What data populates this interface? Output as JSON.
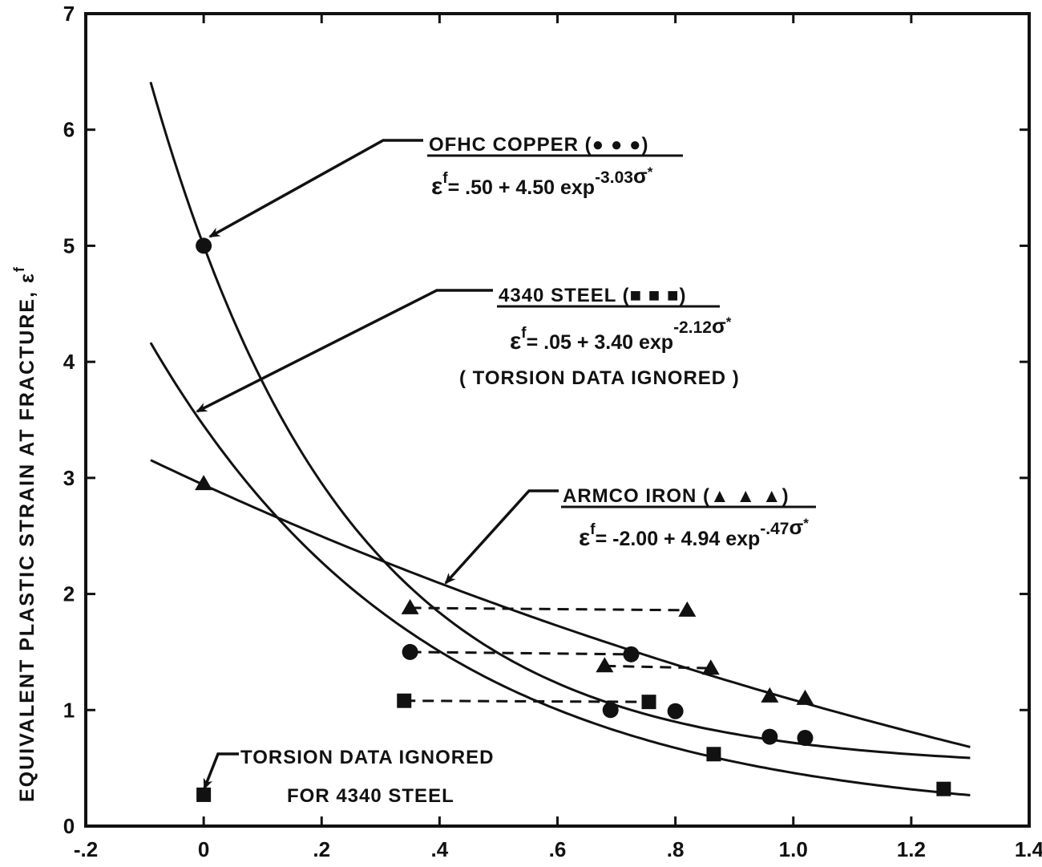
{
  "chart_data": {
    "type": "scatter",
    "title": "",
    "xlabel": "",
    "ylabel": "EQUIVALENT PLASTIC STRAIN AT FRACTURE, εᶠ",
    "xlim": [
      -0.2,
      1.4
    ],
    "ylim": [
      0,
      7
    ],
    "grid": false,
    "x_ticks": [
      -0.2,
      0,
      0.2,
      0.4,
      0.6,
      0.8,
      1.0,
      1.2,
      1.4
    ],
    "x_tick_labels": [
      "-.2",
      "0",
      ".2",
      ".4",
      ".6",
      ".8",
      "1.0",
      "1.2",
      "1.4"
    ],
    "y_ticks": [
      0,
      1,
      2,
      3,
      4,
      5,
      6,
      7
    ],
    "y_tick_labels": [
      "0",
      "1",
      "2",
      "3",
      "4",
      "5",
      "6",
      "7"
    ],
    "series": [
      {
        "name": "OFHC COPPER",
        "marker": "circle",
        "fit": {
          "a": 0.5,
          "b": 4.5,
          "c": -3.03,
          "x_range": [
            -0.09,
            1.3
          ]
        },
        "equation_text": "εᶠ= .50 + 4.50 exp⁻³·⁰³σ*",
        "points": [
          [
            0,
            5.0
          ],
          [
            0.35,
            1.5
          ],
          [
            0.725,
            1.48
          ],
          [
            0.69,
            1.0
          ],
          [
            0.8,
            0.99
          ],
          [
            0.96,
            0.77
          ],
          [
            1.02,
            0.76
          ]
        ],
        "dashed_links": [
          [
            [
              0.35,
              1.5
            ],
            [
              0.725,
              1.48
            ]
          ]
        ]
      },
      {
        "name": "4340 STEEL",
        "marker": "square",
        "fit": {
          "a": 0.05,
          "b": 3.4,
          "c": -2.12,
          "x_range": [
            -0.09,
            1.3
          ]
        },
        "equation_text": "εᶠ= .05 + 3.40 exp⁻²·¹²σ*",
        "note": "(TORSION DATA IGNORED)",
        "points": [
          [
            0,
            0.27
          ],
          [
            0.34,
            1.08
          ],
          [
            0.755,
            1.07
          ],
          [
            0.865,
            0.62
          ],
          [
            1.255,
            0.32
          ]
        ],
        "dashed_links": [
          [
            [
              0.34,
              1.08
            ],
            [
              0.755,
              1.07
            ]
          ]
        ]
      },
      {
        "name": "ARMCO IRON",
        "marker": "triangle",
        "fit": {
          "a": -2.0,
          "b": 4.94,
          "c": -0.47,
          "x_range": [
            -0.09,
            1.3
          ]
        },
        "equation_text": "εᶠ= -2.00 + 4.94 exp⁻·⁴⁷σ*",
        "points": [
          [
            0,
            2.95
          ],
          [
            0.35,
            1.88
          ],
          [
            0.82,
            1.86
          ],
          [
            0.68,
            1.38
          ],
          [
            0.86,
            1.36
          ],
          [
            0.96,
            1.12
          ],
          [
            1.02,
            1.1
          ]
        ],
        "dashed_links": [
          [
            [
              0.35,
              1.88
            ],
            [
              0.82,
              1.86
            ]
          ],
          [
            [
              0.68,
              1.38
            ],
            [
              0.86,
              1.36
            ]
          ]
        ]
      }
    ],
    "annotations": [
      "OFHC COPPER (●●●)",
      "4340 STEEL (■■■)",
      "ARMCO IRON (▲▲▲)",
      "TORSION DATA IGNORED FOR 4340 STEEL"
    ]
  },
  "labels": {
    "y_axis": "EQUIVALENT PLASTIC STRAIN AT FRACTURE, ε",
    "y_axis_sup": "f",
    "copper": {
      "title": "OFHC COPPER (● ● ●)",
      "eq_lhs": "ε",
      "eq_sup": "f",
      "eq_body": "=  .50 + 4.50 exp",
      "eq_exp": "-3.03",
      "eq_sigma": "σ",
      "eq_star": "*"
    },
    "steel": {
      "title": "4340 STEEL (■ ■ ■)",
      "eq_lhs": "ε",
      "eq_sup": "f",
      "eq_body": "= .05  +  3.40 exp",
      "eq_exp": "-2.12",
      "eq_sigma": "σ",
      "eq_star": "*",
      "note": "( TORSION DATA IGNORED )"
    },
    "iron": {
      "title": "ARMCO IRON (▲ ▲ ▲)",
      "eq_lhs": "ε",
      "eq_sup": "f",
      "eq_body": "=  -2.00  +  4.94 exp",
      "eq_exp": "-.47",
      "eq_sigma": "σ",
      "eq_star": "*"
    },
    "torsion_line1": "TORSION DATA IGNORED",
    "torsion_line2": "FOR 4340 STEEL"
  },
  "colors": {
    "ink": "#111111",
    "background": "#ffffff"
  }
}
